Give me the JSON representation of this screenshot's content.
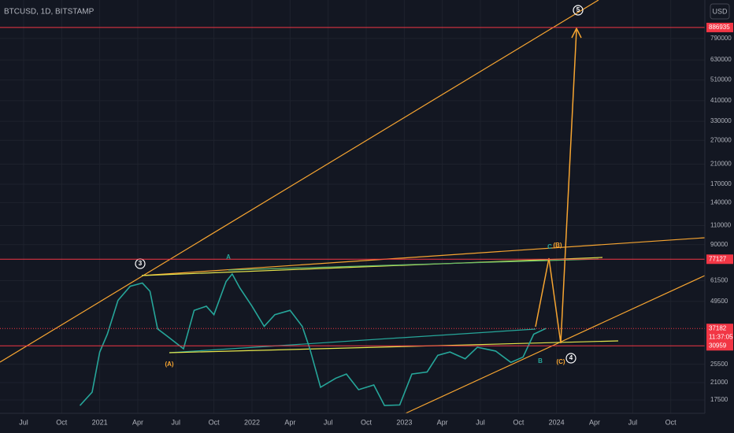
{
  "chart_data": {
    "type": "line",
    "title": "BTCUSD, 1D, BITSTAMP",
    "currency": "USD",
    "log_scale": true,
    "grid": true,
    "color": "#26a69a",
    "xlim": [
      2020.345,
      2024.974
    ],
    "xticks": [
      {
        "value": 2020.5,
        "label": "Jul"
      },
      {
        "value": 2020.75,
        "label": "Oct"
      },
      {
        "value": 2021,
        "label": "2021"
      },
      {
        "value": 2021.25,
        "label": "Apr"
      },
      {
        "value": 2021.5,
        "label": "Jul"
      },
      {
        "value": 2021.75,
        "label": "Oct"
      },
      {
        "value": 2022,
        "label": "2022"
      },
      {
        "value": 2022.25,
        "label": "Apr"
      },
      {
        "value": 2022.5,
        "label": "Jul"
      },
      {
        "value": 2022.75,
        "label": "Oct"
      },
      {
        "value": 2023,
        "label": "2023"
      },
      {
        "value": 2023.25,
        "label": "Apr"
      },
      {
        "value": 2023.5,
        "label": "Jul"
      },
      {
        "value": 2023.75,
        "label": "Oct"
      },
      {
        "value": 2024,
        "label": "2024"
      },
      {
        "value": 2024.25,
        "label": "Apr"
      },
      {
        "value": 2024.5,
        "label": "Jul"
      },
      {
        "value": 2024.75,
        "label": "Oct"
      }
    ],
    "ylim": [
      15200,
      1185000
    ],
    "yticks": [
      17500,
      21000,
      25500,
      49500,
      61500,
      90000,
      110000,
      140000,
      170000,
      210000,
      270000,
      330000,
      410000,
      510000,
      630000,
      790000
    ],
    "x": [
      2020.87,
      2020.95,
      2021.0,
      2021.05,
      2021.12,
      2021.2,
      2021.28,
      2021.33,
      2021.38,
      2021.45,
      2021.55,
      2021.62,
      2021.7,
      2021.75,
      2021.83,
      2021.87,
      2021.92,
      2022.0,
      2022.08,
      2022.15,
      2022.25,
      2022.33,
      2022.38,
      2022.45,
      2022.55,
      2022.62,
      2022.7,
      2022.8,
      2022.87,
      2022.97,
      2023.05,
      2023.15,
      2023.22,
      2023.3,
      2023.4,
      2023.48,
      2023.6,
      2023.7,
      2023.78,
      2023.85,
      2023.93
    ],
    "series": [
      {
        "values": [
          16500,
          19000,
          29000,
          35000,
          50000,
          58000,
          60000,
          55000,
          37000,
          34000,
          30000,
          45000,
          47000,
          43000,
          61000,
          66000,
          57000,
          47000,
          38000,
          43000,
          45000,
          38000,
          30000,
          20000,
          22000,
          23000,
          19500,
          20500,
          16500,
          16600,
          23000,
          23500,
          28000,
          29000,
          27000,
          30500,
          29300,
          26000,
          27500,
          35000,
          37182
        ]
      }
    ],
    "price_levels": [
      886935,
      77127,
      37182,
      30959
    ],
    "countdown": "11:37:05",
    "annotations": [
      "3",
      "A",
      "(A)",
      "B",
      "C",
      "(B)",
      "(C)",
      "4",
      "5"
    ]
  }
}
